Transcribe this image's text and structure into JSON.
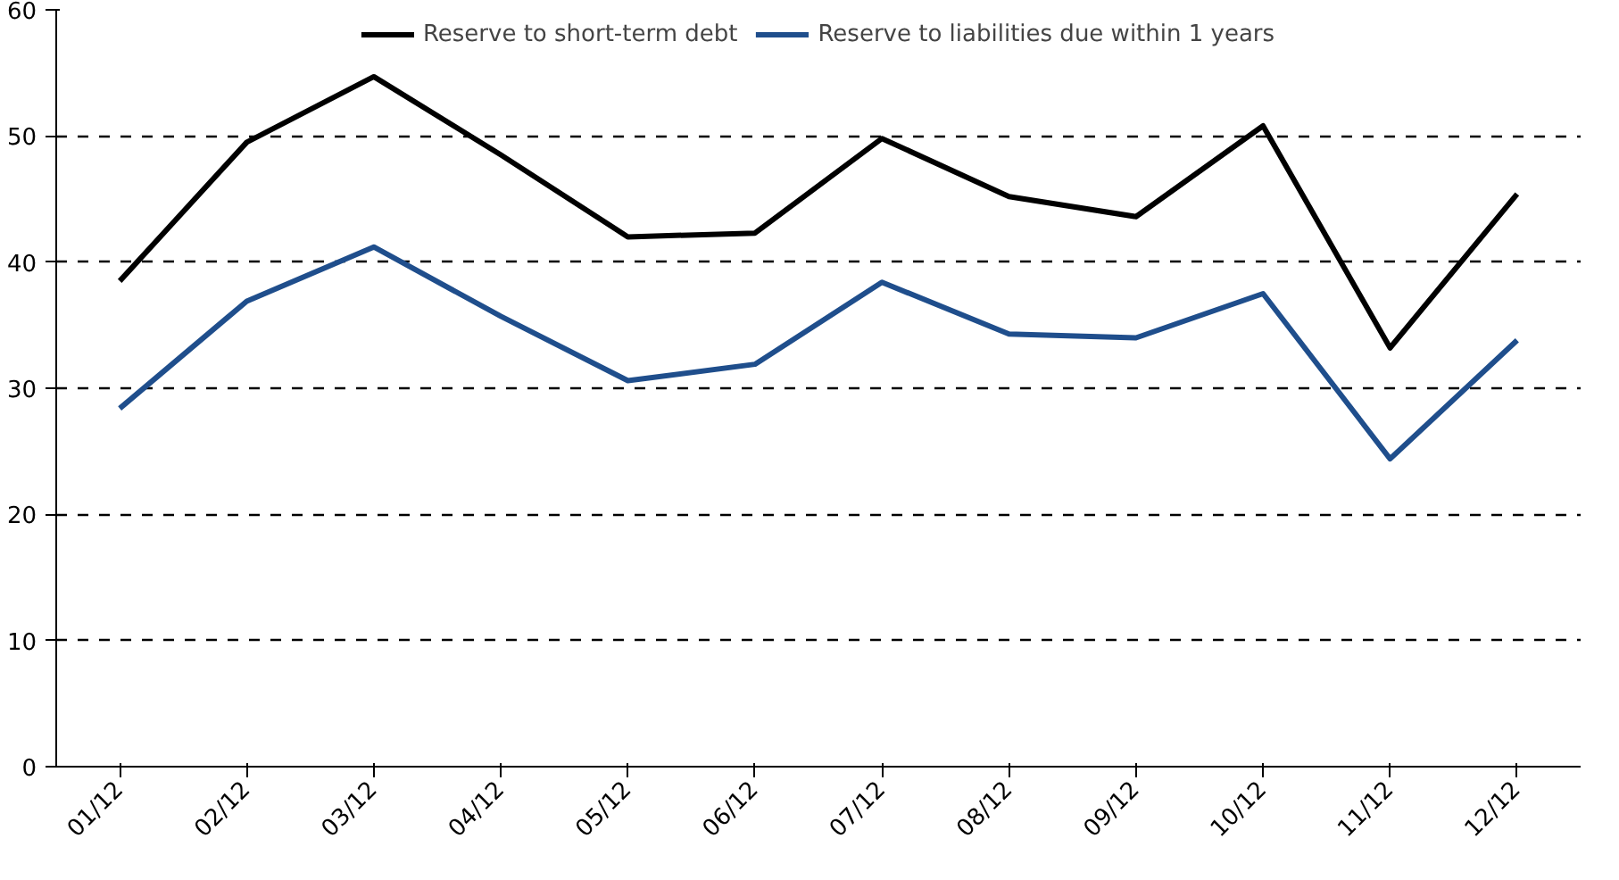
{
  "chart_data": {
    "type": "line",
    "categories": [
      "01/12",
      "02/12",
      "03/12",
      "04/12",
      "05/12",
      "06/12",
      "07/12",
      "08/12",
      "09/12",
      "10/12",
      "11/12",
      "12/12"
    ],
    "series": [
      {
        "name": "Reserve to short-term debt",
        "color": "#000000",
        "values": [
          38.5,
          49.5,
          54.7,
          48.5,
          42.0,
          42.3,
          49.8,
          45.2,
          43.6,
          50.8,
          33.2,
          45.4
        ]
      },
      {
        "name": "Reserve to liabilities due within 1 years",
        "color": "#1f4e8c",
        "values": [
          28.4,
          36.9,
          41.2,
          35.7,
          30.6,
          31.9,
          38.4,
          34.3,
          34.0,
          37.5,
          24.4,
          33.8
        ]
      }
    ],
    "ylim": [
      0,
      60
    ],
    "yticks": [
      0,
      10,
      20,
      30,
      40,
      50,
      60
    ],
    "grid": "y",
    "legend": "top",
    "line_style": "solid",
    "marker": "none"
  }
}
